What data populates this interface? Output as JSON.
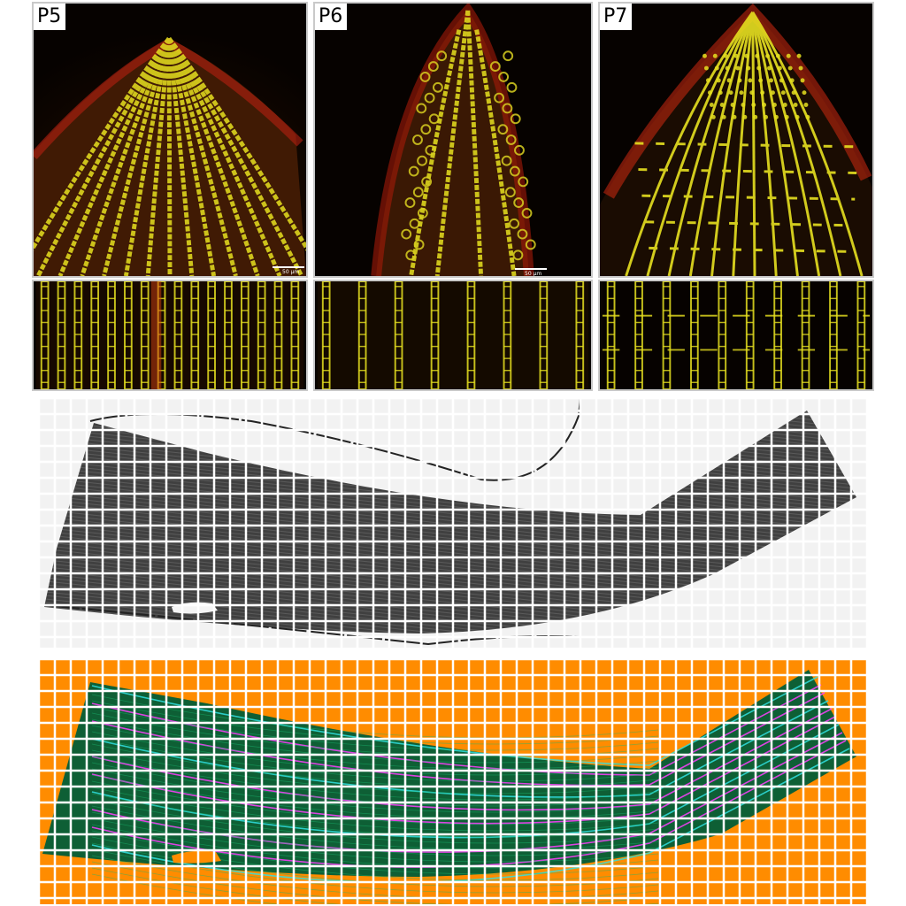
{
  "panels": [
    {
      "stage": "P5",
      "scale": "50 µm"
    },
    {
      "stage": "P6",
      "scale": "50 µm"
    },
    {
      "stage": "P7",
      "scale": ""
    }
  ],
  "colors": {
    "background": "#000000",
    "cell_wall": "#e6e020",
    "chlorophyll": "#c01808",
    "grid_gray": "#ffffff",
    "map_bg": "#ff8c00",
    "map_fill": "#0e5f35",
    "trace_magenta": "#ff40ff",
    "trace_cyan": "#30e0e0"
  }
}
